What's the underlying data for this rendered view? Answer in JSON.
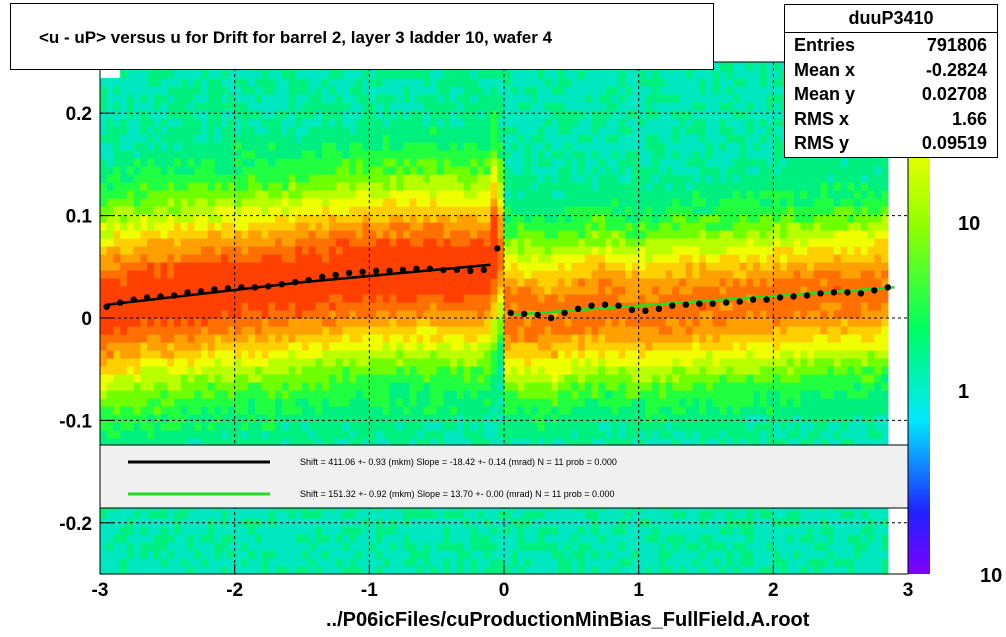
{
  "chart_data": {
    "type": "heatmap",
    "title": "<u - uP>       versus   u for Drift for barrel 2, layer 3 ladder 10, wafer 4",
    "xlabel": "../P06icFiles/cuProductionMinBias_FullField.A.root",
    "ylabel": "",
    "xlim": [
      -3,
      3
    ],
    "ylim": [
      -0.25,
      0.25
    ],
    "x_ticks": [
      "-3",
      "-2",
      "-1",
      "0",
      "1",
      "2",
      "3"
    ],
    "y_ticks": [
      "-0.2",
      "-0.1",
      "0",
      "0.1",
      "0.2"
    ],
    "color_scale": {
      "log": true,
      "tick_labels": [
        "1",
        "10",
        "10"
      ]
    },
    "grid": true,
    "stats": {
      "name": "duuP3410",
      "rows": [
        {
          "key": "Entries",
          "value": "791806"
        },
        {
          "key": "Mean x",
          "value": "-0.2824"
        },
        {
          "key": "Mean y",
          "value": "0.02708"
        },
        {
          "key": "RMS x",
          "value": "1.66"
        },
        {
          "key": "RMS y",
          "value": "0.09519"
        }
      ]
    },
    "legend": {
      "placement": "lower-center",
      "entries": [
        {
          "color": "#000000",
          "text": "Shift =   411.06 +- 0.93 (mkm) Slope =   -18.42 +- 0.14 (mrad)  N = 11 prob = 0.000"
        },
        {
          "color": "#22dd22",
          "text": "Shift =   151.32 +- 0.92 (mkm) Slope =    13.70 +- 0.00 (mrad)  N = 11 prob = 0.000"
        }
      ]
    },
    "profile_points": {
      "x": [
        -2.95,
        -2.85,
        -2.75,
        -2.65,
        -2.55,
        -2.45,
        -2.35,
        -2.25,
        -2.15,
        -2.05,
        -1.95,
        -1.85,
        -1.75,
        -1.65,
        -1.55,
        -1.45,
        -1.35,
        -1.25,
        -1.15,
        -1.05,
        -0.95,
        -0.85,
        -0.75,
        -0.65,
        -0.55,
        -0.45,
        -0.35,
        -0.25,
        -0.15,
        -0.05,
        0.05,
        0.15,
        0.25,
        0.35,
        0.45,
        0.55,
        0.65,
        0.75,
        0.85,
        0.95,
        1.05,
        1.15,
        1.25,
        1.35,
        1.45,
        1.55,
        1.65,
        1.75,
        1.85,
        1.95,
        2.05,
        2.15,
        2.25,
        2.35,
        2.45,
        2.55,
        2.65,
        2.75,
        2.85
      ],
      "y": [
        0.011,
        0.015,
        0.018,
        0.02,
        0.021,
        0.022,
        0.025,
        0.026,
        0.028,
        0.029,
        0.03,
        0.03,
        0.031,
        0.033,
        0.035,
        0.037,
        0.04,
        0.042,
        0.044,
        0.045,
        0.046,
        0.046,
        0.047,
        0.048,
        0.048,
        0.047,
        0.047,
        0.046,
        0.047,
        0.068,
        0.005,
        0.004,
        0.003,
        0.0,
        0.005,
        0.009,
        0.012,
        0.013,
        0.012,
        0.008,
        0.007,
        0.009,
        0.012,
        0.013,
        0.014,
        0.014,
        0.015,
        0.016,
        0.018,
        0.018,
        0.02,
        0.021,
        0.022,
        0.024,
        0.025,
        0.025,
        0.024,
        0.027,
        0.03
      ]
    },
    "fit_lines": [
      {
        "color": "#000000",
        "x": [
          -2.95,
          -1.5,
          -0.1
        ],
        "y": [
          0.013,
          0.035,
          0.052
        ]
      },
      {
        "color": "#22dd22",
        "x": [
          0.05,
          1.0,
          2.9
        ],
        "y": [
          0.003,
          0.012,
          0.03
        ]
      }
    ]
  }
}
